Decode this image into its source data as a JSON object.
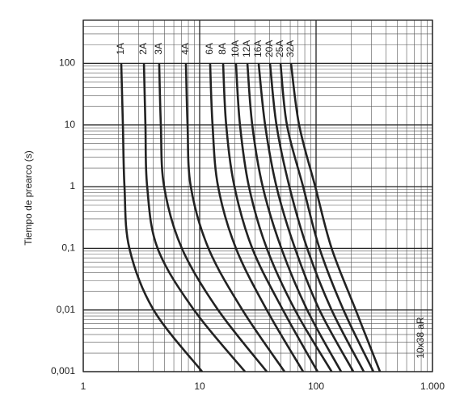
{
  "chart_data": {
    "type": "line",
    "y_label": "Tiempo de prearco (s)",
    "annotation": "10x38 aR",
    "log_x": true,
    "log_y": true,
    "grid": true,
    "color": "#222222",
    "xlim": [
      1,
      1000
    ],
    "xticks": [
      1,
      10,
      100,
      {
        "value": 1000,
        "label": "1.000"
      }
    ],
    "ylim": [
      0.001,
      500
    ],
    "yticks": [
      {
        "value": 0.001,
        "label": "0,001"
      },
      {
        "value": 0.01,
        "label": "0,01"
      },
      {
        "value": 0.1,
        "label": "0,1"
      },
      1,
      10,
      100
    ],
    "series": [
      {
        "name": "1A",
        "x": [
          2.12,
          2.19,
          2.26,
          2.49,
          4.02,
          10.5
        ],
        "values": [
          100,
          10,
          1,
          0.1,
          0.01,
          0.001
        ]
      },
      {
        "name": "2A",
        "x": [
          3.32,
          3.42,
          3.54,
          4.35,
          8.94,
          24.5
        ],
        "values": [
          100,
          10,
          1,
          0.1,
          0.01,
          0.001
        ]
      },
      {
        "name": "3A",
        "x": [
          4.49,
          4.64,
          4.95,
          7.03,
          14.4,
          37.7
        ],
        "values": [
          100,
          10,
          1,
          0.1,
          0.01,
          0.001
        ]
      },
      {
        "name": "4A",
        "x": [
          7.62,
          7.87,
          8.39,
          11.9,
          23.3,
          53.6
        ],
        "values": [
          100,
          10,
          1,
          0.1,
          0.01,
          0.001
        ]
      },
      {
        "name": "6A",
        "x": [
          12.3,
          12.9,
          14.4,
          20.5,
          37.7,
          77.4
        ],
        "values": [
          100,
          10,
          1,
          0.1,
          0.01,
          0.001
        ]
      },
      {
        "name": "8A",
        "x": [
          15.9,
          16.9,
          19.9,
          28.3,
          51.9,
          103
        ],
        "values": [
          100,
          10,
          1,
          0.1,
          0.01,
          0.001
        ]
      },
      {
        "name": "10A",
        "x": [
          20.5,
          22.2,
          26.5,
          37.7,
          65.9,
          136
        ],
        "values": [
          100,
          10,
          1,
          0.1,
          0.01,
          0.001
        ]
      },
      {
        "name": "12A",
        "x": [
          25.7,
          28.3,
          34.8,
          50.3,
          83.9,
          164
        ],
        "values": [
          100,
          10,
          1,
          0.1,
          0.01,
          0.001
        ]
      },
      {
        "name": "16A",
        "x": [
          32.1,
          36.5,
          45.7,
          65.9,
          107,
          209
        ],
        "values": [
          100,
          10,
          1,
          0.1,
          0.01,
          0.001
        ]
      },
      {
        "name": "20A",
        "x": [
          40.2,
          45.7,
          59.0,
          83.9,
          136,
          257
        ],
        "values": [
          100,
          10,
          1,
          0.1,
          0.01,
          0.001
        ]
      },
      {
        "name": "25A",
        "x": [
          49.5,
          56.2,
          77.4,
          107,
          172,
          311
        ],
        "values": [
          100,
          10,
          1,
          0.1,
          0.01,
          0.001
        ]
      },
      {
        "name": "32A",
        "x": [
          60.9,
          71.5,
          98.4,
          136,
          219,
          354
        ],
        "values": [
          100,
          10,
          1,
          0.1,
          0.01,
          0.001
        ]
      }
    ]
  }
}
